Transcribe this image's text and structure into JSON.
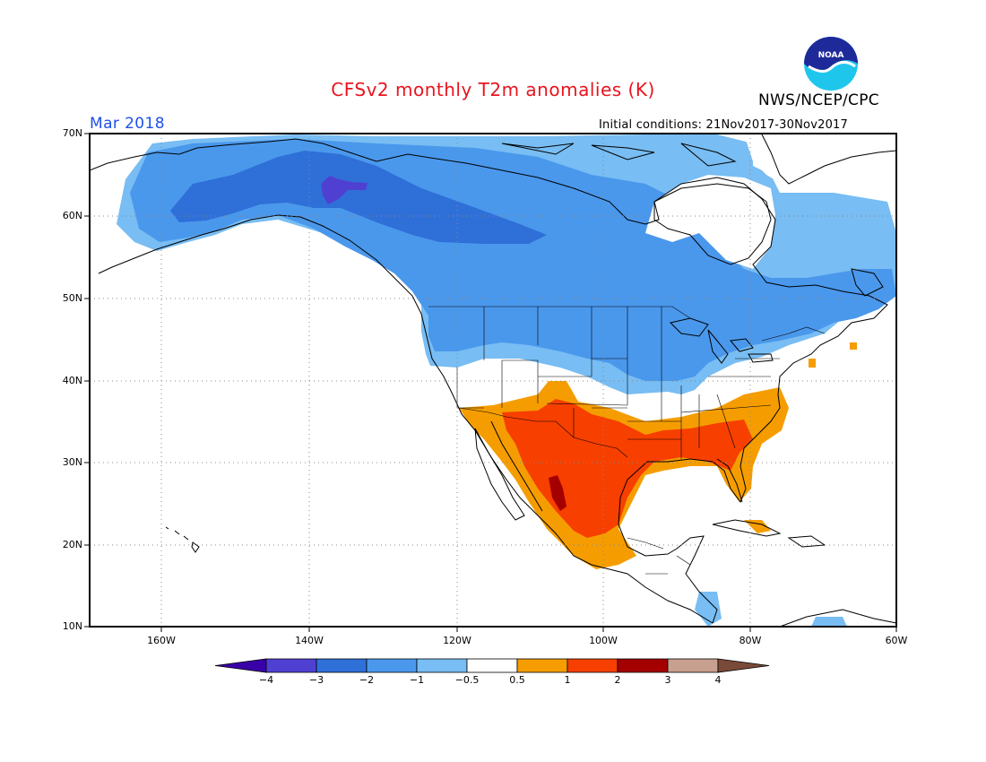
{
  "title": "CFSv2 monthly T2m anomalies (K)",
  "agency": "NWS/NCEP/CPC",
  "logo_text": "NOAA",
  "valid_month": "Mar 2018",
  "initial_conditions": "Initial conditions: 21Nov2017-30Nov2017",
  "lat_labels": [
    "70N",
    "60N",
    "50N",
    "40N",
    "30N",
    "20N",
    "10N"
  ],
  "lon_labels": [
    "160W",
    "140W",
    "120W",
    "100W",
    "80W",
    "60W"
  ],
  "colorbar": {
    "labels": [
      "−4",
      "−3",
      "−2",
      "−1",
      "−0.5",
      "0.5",
      "1",
      "2",
      "3",
      "4"
    ],
    "colors": [
      "#3a00a8",
      "#5040d2",
      "#2f6fd8",
      "#4a98ec",
      "#78bdf3",
      "#ffffff",
      "#f59d00",
      "#f73f00",
      "#a50000",
      "#c8a090",
      "#7a4a38"
    ]
  },
  "anomaly_regions": [
    {
      "region": "Alaska and northern Canada",
      "category": "-1 to -2 K"
    },
    {
      "region": "Yukon core",
      "category": "-3 to -4 K"
    },
    {
      "region": "Southwest US and Mexico",
      "category": "1 to 2 K"
    },
    {
      "region": "Northwest Mexico core",
      "category": "2 to 3 K"
    },
    {
      "region": "Southeast US",
      "category": "0.5 to 2 K"
    }
  ]
}
